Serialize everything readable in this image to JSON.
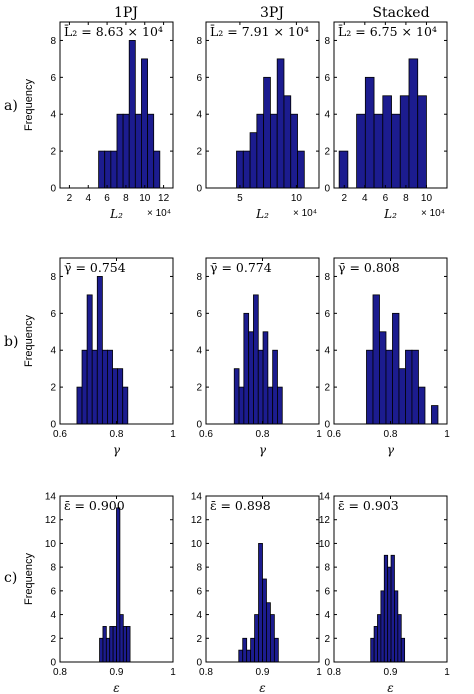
{
  "columns": [
    "1PJ",
    "3PJ",
    "Stacked"
  ],
  "rows": [
    "a)",
    "b)",
    "c)"
  ],
  "chart_data": [
    {
      "type": "bar",
      "panel": "a-1PJ",
      "annotation": "L̄₂ = 8.63 × 10⁴",
      "xlabel": "L₂",
      "ylabel": "Frequency",
      "x_exponent": "× 10⁴",
      "xlim": [
        1,
        13
      ],
      "ylim": [
        0,
        9
      ],
      "xticks": [
        "2",
        "4",
        "6",
        "8",
        "10",
        "12"
      ],
      "xtick_values": [
        2,
        4,
        6,
        8,
        10,
        12
      ],
      "yticks": [
        "0",
        "2",
        "4",
        "6",
        "8"
      ],
      "ytick_values": [
        0,
        2,
        4,
        6,
        8
      ],
      "bins": [
        {
          "x0": 5.1,
          "x1": 5.75,
          "y": 2
        },
        {
          "x0": 5.75,
          "x1": 6.4,
          "y": 2
        },
        {
          "x0": 6.4,
          "x1": 7.05,
          "y": 2
        },
        {
          "x0": 7.05,
          "x1": 7.7,
          "y": 4
        },
        {
          "x0": 7.7,
          "x1": 8.35,
          "y": 4
        },
        {
          "x0": 8.35,
          "x1": 9.0,
          "y": 8
        },
        {
          "x0": 9.0,
          "x1": 9.65,
          "y": 4
        },
        {
          "x0": 9.65,
          "x1": 10.3,
          "y": 7
        },
        {
          "x0": 10.3,
          "x1": 10.95,
          "y": 4
        },
        {
          "x0": 10.95,
          "x1": 11.6,
          "y": 2
        }
      ]
    },
    {
      "type": "bar",
      "panel": "a-3PJ",
      "annotation": "L̄₂ = 7.91 × 10⁴",
      "xlabel": "L₂",
      "ylabel": "",
      "x_exponent": "× 10⁴",
      "xlim": [
        2,
        12
      ],
      "ylim": [
        0,
        9
      ],
      "xticks": [
        "5",
        "10"
      ],
      "xtick_values": [
        5,
        10
      ],
      "yticks": [
        "0",
        "2",
        "4",
        "6",
        "8"
      ],
      "ytick_values": [
        0,
        2,
        4,
        6,
        8
      ],
      "bins": [
        {
          "x0": 4.7,
          "x1": 5.3,
          "y": 2
        },
        {
          "x0": 5.3,
          "x1": 5.9,
          "y": 2
        },
        {
          "x0": 5.9,
          "x1": 6.5,
          "y": 3
        },
        {
          "x0": 6.5,
          "x1": 7.1,
          "y": 4
        },
        {
          "x0": 7.1,
          "x1": 7.7,
          "y": 6
        },
        {
          "x0": 7.7,
          "x1": 8.3,
          "y": 4
        },
        {
          "x0": 8.3,
          "x1": 8.9,
          "y": 7
        },
        {
          "x0": 8.9,
          "x1": 9.5,
          "y": 5
        },
        {
          "x0": 9.5,
          "x1": 10.1,
          "y": 4
        },
        {
          "x0": 10.1,
          "x1": 10.7,
          "y": 2
        }
      ]
    },
    {
      "type": "bar",
      "panel": "a-Stacked",
      "annotation": "L̄₂ = 6.75 × 10⁴",
      "xlabel": "L₂",
      "ylabel": "",
      "x_exponent": "× 10⁴",
      "xlim": [
        1,
        12
      ],
      "ylim": [
        0,
        9
      ],
      "xticks": [
        "2",
        "4",
        "6",
        "8",
        "10"
      ],
      "xtick_values": [
        2,
        4,
        6,
        8,
        10
      ],
      "yticks": [
        "0",
        "2",
        "4",
        "6",
        "8"
      ],
      "ytick_values": [
        0,
        2,
        4,
        6,
        8
      ],
      "bins": [
        {
          "x0": 1.5,
          "x1": 2.35,
          "y": 2
        },
        {
          "x0": 2.35,
          "x1": 3.2,
          "y": 0
        },
        {
          "x0": 3.2,
          "x1": 4.05,
          "y": 4
        },
        {
          "x0": 4.05,
          "x1": 4.9,
          "y": 6
        },
        {
          "x0": 4.9,
          "x1": 5.75,
          "y": 4
        },
        {
          "x0": 5.75,
          "x1": 6.6,
          "y": 5
        },
        {
          "x0": 6.6,
          "x1": 7.45,
          "y": 4
        },
        {
          "x0": 7.45,
          "x1": 8.3,
          "y": 5
        },
        {
          "x0": 8.3,
          "x1": 9.15,
          "y": 7
        },
        {
          "x0": 9.15,
          "x1": 10.0,
          "y": 5
        }
      ]
    },
    {
      "type": "bar",
      "panel": "b-1PJ",
      "annotation": "γ̄ = 0.754",
      "xlabel": "γ",
      "ylabel": "Frequency",
      "xlim": [
        0.6,
        1.0
      ],
      "ylim": [
        0,
        9
      ],
      "xticks": [
        "0.6",
        "0.8",
        "1"
      ],
      "xtick_values": [
        0.6,
        0.8,
        1.0
      ],
      "yticks": [
        "0",
        "2",
        "4",
        "6",
        "8"
      ],
      "ytick_values": [
        0,
        2,
        4,
        6,
        8
      ],
      "bins": [
        {
          "x0": 0.66,
          "x1": 0.678,
          "y": 2
        },
        {
          "x0": 0.678,
          "x1": 0.696,
          "y": 4
        },
        {
          "x0": 0.696,
          "x1": 0.714,
          "y": 7
        },
        {
          "x0": 0.714,
          "x1": 0.732,
          "y": 4
        },
        {
          "x0": 0.732,
          "x1": 0.75,
          "y": 8
        },
        {
          "x0": 0.75,
          "x1": 0.768,
          "y": 4
        },
        {
          "x0": 0.768,
          "x1": 0.786,
          "y": 4
        },
        {
          "x0": 0.786,
          "x1": 0.804,
          "y": 3
        },
        {
          "x0": 0.804,
          "x1": 0.822,
          "y": 3
        },
        {
          "x0": 0.822,
          "x1": 0.84,
          "y": 2
        }
      ]
    },
    {
      "type": "bar",
      "panel": "b-3PJ",
      "annotation": "γ̄ = 0.774",
      "xlabel": "γ",
      "ylabel": "",
      "xlim": [
        0.6,
        1.0
      ],
      "ylim": [
        0,
        9
      ],
      "xticks": [
        "0.6",
        "0.8",
        "1"
      ],
      "xtick_values": [
        0.6,
        0.8,
        1.0
      ],
      "yticks": [
        "0",
        "2",
        "4",
        "6",
        "8"
      ],
      "ytick_values": [
        0,
        2,
        4,
        6,
        8
      ],
      "bins": [
        {
          "x0": 0.7,
          "x1": 0.717,
          "y": 3
        },
        {
          "x0": 0.717,
          "x1": 0.734,
          "y": 2
        },
        {
          "x0": 0.734,
          "x1": 0.751,
          "y": 6
        },
        {
          "x0": 0.751,
          "x1": 0.768,
          "y": 5
        },
        {
          "x0": 0.768,
          "x1": 0.785,
          "y": 7
        },
        {
          "x0": 0.785,
          "x1": 0.802,
          "y": 4
        },
        {
          "x0": 0.802,
          "x1": 0.819,
          "y": 5
        },
        {
          "x0": 0.819,
          "x1": 0.836,
          "y": 2
        },
        {
          "x0": 0.836,
          "x1": 0.853,
          "y": 4
        },
        {
          "x0": 0.853,
          "x1": 0.87,
          "y": 2
        }
      ]
    },
    {
      "type": "bar",
      "panel": "b-Stacked",
      "annotation": "γ̄ = 0.808",
      "xlabel": "γ",
      "ylabel": "",
      "xlim": [
        0.6,
        1.0
      ],
      "ylim": [
        0,
        9
      ],
      "xticks": [
        "0.6",
        "0.8",
        "1"
      ],
      "xtick_values": [
        0.6,
        0.8,
        1.0
      ],
      "yticks": [
        "0",
        "2",
        "4",
        "6",
        "8"
      ],
      "ytick_values": [
        0,
        2,
        4,
        6,
        8
      ],
      "bins": [
        {
          "x0": 0.715,
          "x1": 0.738,
          "y": 4
        },
        {
          "x0": 0.738,
          "x1": 0.761,
          "y": 7
        },
        {
          "x0": 0.761,
          "x1": 0.784,
          "y": 5
        },
        {
          "x0": 0.784,
          "x1": 0.807,
          "y": 4
        },
        {
          "x0": 0.807,
          "x1": 0.83,
          "y": 6
        },
        {
          "x0": 0.83,
          "x1": 0.853,
          "y": 3
        },
        {
          "x0": 0.853,
          "x1": 0.876,
          "y": 4
        },
        {
          "x0": 0.876,
          "x1": 0.899,
          "y": 4
        },
        {
          "x0": 0.899,
          "x1": 0.922,
          "y": 2
        },
        {
          "x0": 0.922,
          "x1": 0.945,
          "y": 0
        },
        {
          "x0": 0.945,
          "x1": 0.968,
          "y": 1
        }
      ]
    },
    {
      "type": "bar",
      "panel": "c-1PJ",
      "annotation": "ε̄ = 0.900",
      "xlabel": "ε",
      "ylabel": "Frequency",
      "xlim": [
        0.8,
        1.0
      ],
      "ylim": [
        0,
        14
      ],
      "xticks": [
        "0.8",
        "0.9",
        "1"
      ],
      "xtick_values": [
        0.8,
        0.9,
        1.0
      ],
      "yticks": [
        "0",
        "2",
        "4",
        "6",
        "8",
        "10",
        "12",
        "14"
      ],
      "ytick_values": [
        0,
        2,
        4,
        6,
        8,
        10,
        12,
        14
      ],
      "bins": [
        {
          "x0": 0.87,
          "x1": 0.876,
          "y": 2
        },
        {
          "x0": 0.876,
          "x1": 0.882,
          "y": 3
        },
        {
          "x0": 0.882,
          "x1": 0.888,
          "y": 2
        },
        {
          "x0": 0.888,
          "x1": 0.894,
          "y": 3
        },
        {
          "x0": 0.894,
          "x1": 0.9,
          "y": 3
        },
        {
          "x0": 0.9,
          "x1": 0.906,
          "y": 13
        },
        {
          "x0": 0.906,
          "x1": 0.912,
          "y": 4
        },
        {
          "x0": 0.912,
          "x1": 0.918,
          "y": 3
        },
        {
          "x0": 0.918,
          "x1": 0.924,
          "y": 3
        }
      ]
    },
    {
      "type": "bar",
      "panel": "c-3PJ",
      "annotation": "ε̄ = 0.898",
      "xlabel": "ε",
      "ylabel": "",
      "xlim": [
        0.8,
        1.0
      ],
      "ylim": [
        0,
        14
      ],
      "xticks": [
        "0.8",
        "0.9",
        "1"
      ],
      "xtick_values": [
        0.8,
        0.9,
        1.0
      ],
      "yticks": [
        "0",
        "2",
        "4",
        "6",
        "8",
        "10",
        "12",
        "14"
      ],
      "ytick_values": [
        0,
        2,
        4,
        6,
        8,
        10,
        12,
        14
      ],
      "bins": [
        {
          "x0": 0.858,
          "x1": 0.865,
          "y": 1
        },
        {
          "x0": 0.865,
          "x1": 0.872,
          "y": 2
        },
        {
          "x0": 0.872,
          "x1": 0.879,
          "y": 1
        },
        {
          "x0": 0.879,
          "x1": 0.886,
          "y": 2
        },
        {
          "x0": 0.886,
          "x1": 0.893,
          "y": 4
        },
        {
          "x0": 0.893,
          "x1": 0.9,
          "y": 10
        },
        {
          "x0": 0.9,
          "x1": 0.907,
          "y": 7
        },
        {
          "x0": 0.907,
          "x1": 0.914,
          "y": 5
        },
        {
          "x0": 0.914,
          "x1": 0.921,
          "y": 4
        },
        {
          "x0": 0.921,
          "x1": 0.928,
          "y": 2
        }
      ]
    },
    {
      "type": "bar",
      "panel": "c-Stacked",
      "annotation": "ε̄ = 0.903",
      "xlabel": "ε",
      "ylabel": "",
      "xlim": [
        0.8,
        1.0
      ],
      "ylim": [
        0,
        14
      ],
      "xticks": [
        "0.8",
        "0.9",
        "1"
      ],
      "xtick_values": [
        0.8,
        0.9,
        1.0
      ],
      "yticks": [
        "0",
        "2",
        "4",
        "6",
        "8",
        "10",
        "12",
        "14"
      ],
      "ytick_values": [
        0,
        2,
        4,
        6,
        8,
        10,
        12,
        14
      ],
      "bins": [
        {
          "x0": 0.865,
          "x1": 0.871,
          "y": 2
        },
        {
          "x0": 0.871,
          "x1": 0.877,
          "y": 3
        },
        {
          "x0": 0.877,
          "x1": 0.883,
          "y": 4
        },
        {
          "x0": 0.883,
          "x1": 0.889,
          "y": 6
        },
        {
          "x0": 0.889,
          "x1": 0.895,
          "y": 9
        },
        {
          "x0": 0.895,
          "x1": 0.901,
          "y": 8
        },
        {
          "x0": 0.901,
          "x1": 0.907,
          "y": 9
        },
        {
          "x0": 0.907,
          "x1": 0.913,
          "y": 6
        },
        {
          "x0": 0.913,
          "x1": 0.919,
          "y": 4
        },
        {
          "x0": 0.919,
          "x1": 0.925,
          "y": 2
        }
      ]
    }
  ],
  "colors": {
    "bar_fill": "#1c1c8f",
    "bar_edge": "#000000",
    "axis": "#000000",
    "background": "#ffffff"
  }
}
